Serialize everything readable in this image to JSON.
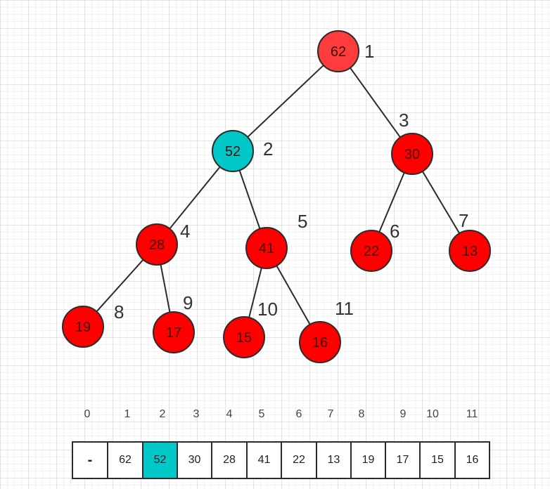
{
  "colors": {
    "node_fill": "#ff0000",
    "root_fill": "#ff3b3b",
    "highlight_fill": "#00c8c8",
    "line": "#2b2b2b"
  },
  "tree": {
    "nodes": [
      {
        "index": "1",
        "value": "62",
        "state": "root"
      },
      {
        "index": "2",
        "value": "52",
        "state": "highlight"
      },
      {
        "index": "3",
        "value": "30",
        "state": "normal"
      },
      {
        "index": "4",
        "value": "28",
        "state": "normal"
      },
      {
        "index": "5",
        "value": "41",
        "state": "normal"
      },
      {
        "index": "6",
        "value": "22",
        "state": "normal"
      },
      {
        "index": "7",
        "value": "13",
        "state": "normal"
      },
      {
        "index": "8",
        "value": "19",
        "state": "normal"
      },
      {
        "index": "9",
        "value": "17",
        "state": "normal"
      },
      {
        "index": "10",
        "value": "15",
        "state": "normal"
      },
      {
        "index": "11",
        "value": "16",
        "state": "normal"
      }
    ],
    "edges": [
      [
        1,
        2
      ],
      [
        1,
        3
      ],
      [
        2,
        4
      ],
      [
        2,
        5
      ],
      [
        3,
        6
      ],
      [
        3,
        7
      ],
      [
        4,
        8
      ],
      [
        4,
        9
      ],
      [
        5,
        10
      ],
      [
        5,
        11
      ]
    ]
  },
  "array": {
    "indices": [
      "0",
      "1",
      "2",
      "3",
      "4",
      "5",
      "6",
      "7",
      "8",
      "9",
      "10",
      "11"
    ],
    "cells": [
      {
        "value": "-",
        "state": "normal"
      },
      {
        "value": "62",
        "state": "normal"
      },
      {
        "value": "52",
        "state": "highlight"
      },
      {
        "value": "30",
        "state": "normal"
      },
      {
        "value": "28",
        "state": "normal"
      },
      {
        "value": "41",
        "state": "bold"
      },
      {
        "value": "22",
        "state": "normal"
      },
      {
        "value": "13",
        "state": "normal"
      },
      {
        "value": "19",
        "state": "normal"
      },
      {
        "value": "17",
        "state": "normal"
      },
      {
        "value": "15",
        "state": "normal"
      },
      {
        "value": "16",
        "state": "normal"
      }
    ]
  }
}
